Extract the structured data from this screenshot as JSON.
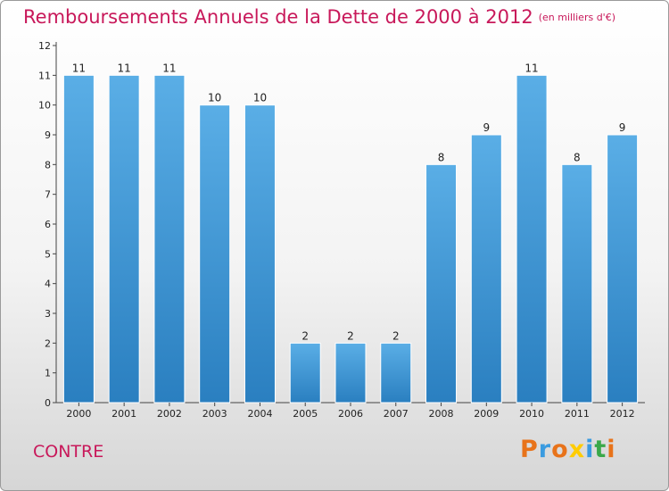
{
  "header": {
    "title": "Remboursements Annuels de la Dette de 2000 à 2012",
    "unit": "(en milliers d'€)"
  },
  "commune": "CONTRE",
  "logo": {
    "letters": [
      "P",
      "r",
      "o",
      "x",
      "i",
      "t",
      "i"
    ],
    "colors": [
      "#e8731a",
      "#3a9be0",
      "#e8731a",
      "#ffcc00",
      "#3a9be0",
      "#3aa84a",
      "#e8731a"
    ]
  },
  "colors": {
    "title": "#c8185a",
    "bar_light": "#5aaee6",
    "bar_dark": "#2a7fc0"
  },
  "chart_data": {
    "type": "bar",
    "categories": [
      "2000",
      "2001",
      "2002",
      "2003",
      "2004",
      "2005",
      "2006",
      "2007",
      "2008",
      "2009",
      "2010",
      "2011",
      "2012"
    ],
    "values": [
      11,
      11,
      11,
      10,
      10,
      2,
      2,
      2,
      8,
      9,
      11,
      8,
      9
    ],
    "title": "Remboursements Annuels de la Dette de 2000 à 2012",
    "ylim": [
      0,
      12
    ],
    "yticks": [
      0,
      1,
      2,
      3,
      4,
      5,
      6,
      7,
      8,
      9,
      10,
      11,
      12
    ],
    "grid": false,
    "data_labels": true
  }
}
